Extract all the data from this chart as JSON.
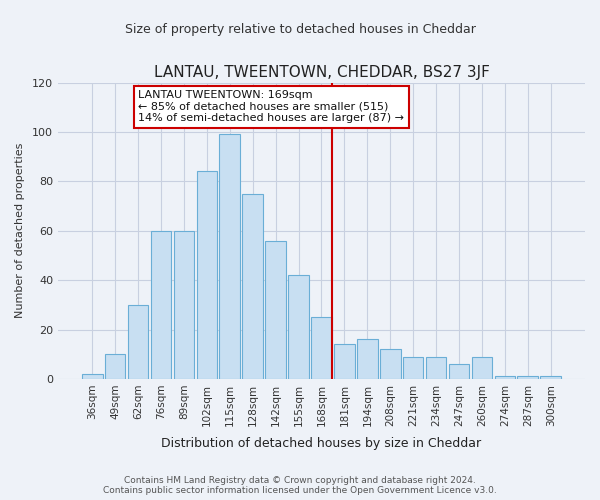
{
  "title": "LANTAU, TWEENTOWN, CHEDDAR, BS27 3JF",
  "subtitle": "Size of property relative to detached houses in Cheddar",
  "xlabel": "Distribution of detached houses by size in Cheddar",
  "ylabel": "Number of detached properties",
  "bar_labels": [
    "36sqm",
    "49sqm",
    "62sqm",
    "76sqm",
    "89sqm",
    "102sqm",
    "115sqm",
    "128sqm",
    "142sqm",
    "155sqm",
    "168sqm",
    "181sqm",
    "194sqm",
    "208sqm",
    "221sqm",
    "234sqm",
    "247sqm",
    "260sqm",
    "274sqm",
    "287sqm",
    "300sqm"
  ],
  "bar_values": [
    2,
    10,
    30,
    60,
    60,
    84,
    99,
    75,
    56,
    42,
    25,
    14,
    16,
    12,
    9,
    9,
    6,
    9,
    1,
    1,
    1
  ],
  "bar_color": "#c8dff2",
  "bar_edge_color": "#6aaed6",
  "vline_x_index": 10,
  "vline_color": "#cc0000",
  "annotation_title": "LANTAU TWEENTOWN: 169sqm",
  "annotation_line1": "← 85% of detached houses are smaller (515)",
  "annotation_line2": "14% of semi-detached houses are larger (87) →",
  "annotation_box_color": "#ffffff",
  "annotation_box_edge": "#cc0000",
  "footer_line1": "Contains HM Land Registry data © Crown copyright and database right 2024.",
  "footer_line2": "Contains public sector information licensed under the Open Government Licence v3.0.",
  "background_color": "#eef2f8",
  "plot_bg_color": "#eef2f8",
  "grid_color": "#c8d0e0",
  "ylim": [
    0,
    120
  ],
  "yticks": [
    0,
    20,
    40,
    60,
    80,
    100,
    120
  ],
  "title_fontsize": 11,
  "subtitle_fontsize": 9
}
